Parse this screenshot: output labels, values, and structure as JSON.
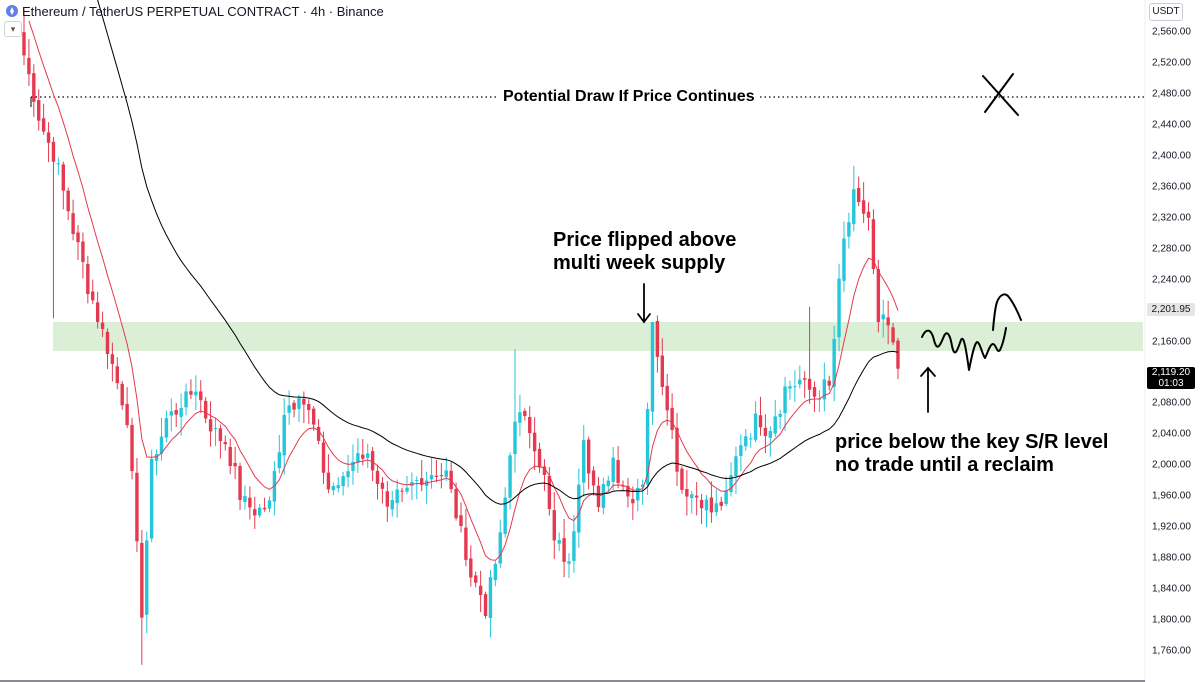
{
  "header": {
    "title": "Ethereum / TetherUS PERPETUAL CONTRACT · 4h · Binance",
    "collapse_icon": "chevron-down-icon",
    "currency": "USDT"
  },
  "price_axis": {
    "ticks": [
      "2,560.00",
      "2,520.00",
      "2,480.00",
      "2,440.00",
      "2,400.00",
      "2,360.00",
      "2,320.00",
      "2,280.00",
      "2,240.00",
      "2,200.00",
      "2,160.00",
      "2,120.00",
      "2,080.00",
      "2,040.00",
      "2,000.00",
      "1,960.00",
      "1,920.00",
      "1,880.00",
      "1,840.00",
      "1,800.00",
      "1,760.00"
    ],
    "marker_label": "2,201.95",
    "last_price": "2,119.20",
    "countdown": "01:03"
  },
  "annotations": {
    "draw_line_label": "Potential Draw If Price Continues",
    "flip_line1": "Price flipped above",
    "flip_line2": "multi week supply",
    "level_line1": "price below the key S/R level",
    "level_line2": "no trade until a reclaim"
  },
  "colors": {
    "up": "#26c6da",
    "down": "#e53950",
    "fast_ma": "#e53950",
    "slow_ma": "#000000",
    "zone": "#dbefd6"
  },
  "chart_data": {
    "type": "candlestick",
    "symbol": "Ethereum / TetherUS PERPETUAL CONTRACT",
    "timeframe": "4h",
    "exchange": "Binance",
    "ylim": [
      1730,
      2590
    ],
    "key_levels": {
      "zone": [
        2146,
        2183
      ],
      "potential_draw": 2474
    },
    "close_anchors": [
      [
        0,
        2530
      ],
      [
        3,
        2450
      ],
      [
        6,
        2400
      ],
      [
        9,
        2330
      ],
      [
        12,
        2260
      ],
      [
        15,
        2190
      ],
      [
        18,
        2130
      ],
      [
        21,
        2060
      ],
      [
        24,
        1810
      ],
      [
        26,
        2000
      ],
      [
        29,
        2060
      ],
      [
        32,
        2080
      ],
      [
        35,
        2100
      ],
      [
        38,
        2050
      ],
      [
        41,
        2030
      ],
      [
        44,
        1960
      ],
      [
        47,
        1940
      ],
      [
        50,
        1950
      ],
      [
        53,
        2070
      ],
      [
        56,
        2095
      ],
      [
        59,
        2050
      ],
      [
        62,
        1970
      ],
      [
        65,
        1980
      ],
      [
        68,
        2020
      ],
      [
        71,
        2000
      ],
      [
        74,
        1940
      ],
      [
        77,
        1960
      ],
      [
        80,
        1980
      ],
      [
        83,
        1990
      ],
      [
        86,
        1990
      ],
      [
        88,
        1940
      ],
      [
        91,
        1860
      ],
      [
        94,
        1820
      ],
      [
        97,
        1900
      ],
      [
        100,
        2070
      ],
      [
        103,
        2050
      ],
      [
        106,
        1980
      ],
      [
        108,
        1900
      ],
      [
        111,
        1870
      ],
      [
        114,
        2040
      ],
      [
        117,
        1940
      ],
      [
        120,
        2010
      ],
      [
        123,
        1960
      ],
      [
        126,
        1980
      ],
      [
        128,
        2180
      ],
      [
        131,
        2080
      ],
      [
        134,
        1970
      ],
      [
        137,
        1960
      ],
      [
        140,
        1940
      ],
      [
        143,
        1960
      ],
      [
        146,
        2030
      ],
      [
        149,
        2060
      ],
      [
        152,
        2050
      ],
      [
        155,
        2100
      ],
      [
        158,
        2110
      ],
      [
        161,
        2090
      ],
      [
        164,
        2100
      ],
      [
        167,
        2290
      ],
      [
        169,
        2340
      ],
      [
        172,
        2320
      ],
      [
        174,
        2180
      ],
      [
        176,
        2180
      ],
      [
        178,
        2120
      ]
    ],
    "visible_extremes": {
      "high": 2387,
      "low": 1742
    }
  }
}
